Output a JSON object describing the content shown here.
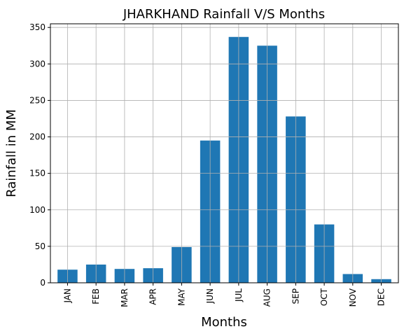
{
  "chart_data": {
    "type": "bar",
    "title": "JHARKHAND Rainfall V/S Months",
    "xlabel": "Months",
    "ylabel": "Rainfall in MM",
    "categories": [
      "JAN",
      "FEB",
      "MAR",
      "APR",
      "MAY",
      "JUN",
      "JUL",
      "AUG",
      "SEP",
      "OCT",
      "NOV",
      "DEC"
    ],
    "values": [
      18,
      25,
      19,
      20,
      49,
      195,
      337,
      325,
      228,
      80,
      12,
      5
    ],
    "ylim": [
      0,
      355
    ],
    "yticks": [
      0,
      50,
      100,
      150,
      200,
      250,
      300,
      350
    ],
    "grid": true,
    "bar_color": "#1f77b4"
  }
}
